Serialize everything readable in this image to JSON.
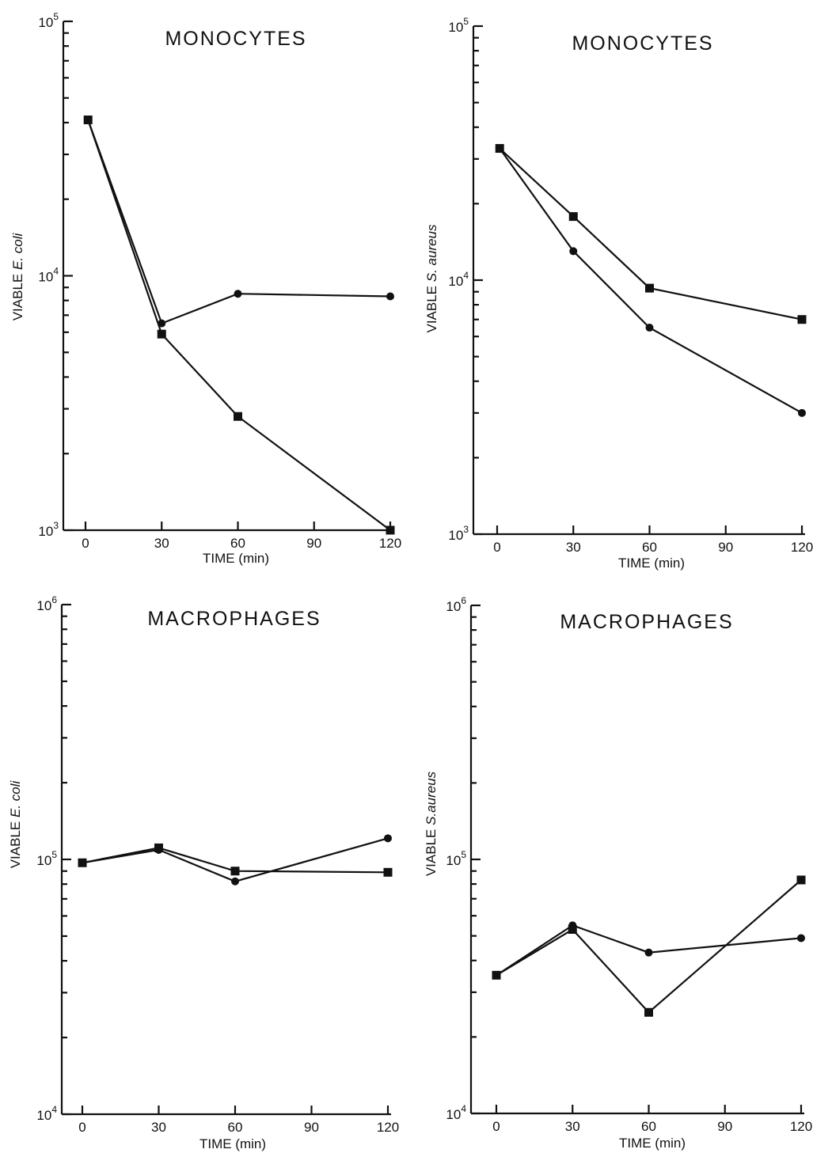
{
  "chart_data": [
    {
      "type": "line",
      "title": "MONOCYTES",
      "xlabel": "TIME (min)",
      "ylabel_prefix": "VIABLE ",
      "ylabel_organism": "E. coli",
      "x_ticks": [
        0,
        30,
        60,
        90,
        120
      ],
      "ylim": [
        1000,
        100000
      ],
      "y_ticks": [
        {
          "value": 1000,
          "mantissa": "10",
          "exp": "3"
        },
        {
          "value": 10000,
          "mantissa": "10",
          "exp": "4"
        },
        {
          "value": 100000,
          "mantissa": "10",
          "exp": "5"
        }
      ],
      "y_scale": "log",
      "series": [
        {
          "marker": "circle",
          "x": [
            1,
            30,
            60,
            120
          ],
          "y": [
            41000,
            6500,
            8500,
            8300
          ]
        },
        {
          "marker": "square",
          "x": [
            1,
            30,
            60,
            120
          ],
          "y": [
            41000,
            5900,
            2800,
            1000
          ]
        }
      ]
    },
    {
      "type": "line",
      "title": "MONOCYTES",
      "xlabel": "TIME (min)",
      "ylabel_prefix": "VIABLE ",
      "ylabel_organism": "S. aureus",
      "x_ticks": [
        0,
        30,
        60,
        90,
        120
      ],
      "ylim": [
        1000,
        100000
      ],
      "y_ticks": [
        {
          "value": 1000,
          "mantissa": "10",
          "exp": "3"
        },
        {
          "value": 10000,
          "mantissa": "10",
          "exp": "4"
        },
        {
          "value": 100000,
          "mantissa": "10",
          "exp": "5"
        }
      ],
      "y_scale": "log",
      "series": [
        {
          "marker": "circle",
          "x": [
            1,
            30,
            60,
            120
          ],
          "y": [
            33000,
            13000,
            6500,
            3000
          ]
        },
        {
          "marker": "square",
          "x": [
            1,
            30,
            60,
            120
          ],
          "y": [
            33000,
            17800,
            9300,
            7000
          ]
        }
      ]
    },
    {
      "type": "line",
      "title": "MACROPHAGES",
      "xlabel": "TIME (min)",
      "ylabel_prefix": "VIABLE ",
      "ylabel_organism": "E. coli",
      "x_ticks": [
        0,
        30,
        60,
        90,
        120
      ],
      "ylim": [
        10000,
        1000000
      ],
      "y_ticks": [
        {
          "value": 10000,
          "mantissa": "10",
          "exp": "4"
        },
        {
          "value": 100000,
          "mantissa": "10",
          "exp": "5"
        },
        {
          "value": 1000000,
          "mantissa": "10",
          "exp": "6"
        }
      ],
      "y_scale": "log",
      "series": [
        {
          "marker": "circle",
          "x": [
            0,
            30,
            60,
            120
          ],
          "y": [
            97000,
            109000,
            82000,
            121000
          ]
        },
        {
          "marker": "square",
          "x": [
            0,
            30,
            60,
            120
          ],
          "y": [
            97000,
            111000,
            90000,
            89000
          ]
        }
      ]
    },
    {
      "type": "line",
      "title": "MACROPHAGES",
      "xlabel": "TIME (min)",
      "ylabel_prefix": "VIABLE ",
      "ylabel_organism": "S.aureus",
      "x_ticks": [
        0,
        30,
        60,
        90,
        120
      ],
      "ylim": [
        10000,
        1000000
      ],
      "y_ticks": [
        {
          "value": 10000,
          "mantissa": "10",
          "exp": "4"
        },
        {
          "value": 100000,
          "mantissa": "10",
          "exp": "5"
        },
        {
          "value": 1000000,
          "mantissa": "10",
          "exp": "6"
        }
      ],
      "y_scale": "log",
      "series": [
        {
          "marker": "circle",
          "x": [
            0,
            30,
            60,
            120
          ],
          "y": [
            35000,
            55000,
            43000,
            49000
          ]
        },
        {
          "marker": "square",
          "x": [
            0,
            30,
            60,
            120
          ],
          "y": [
            35000,
            53000,
            25000,
            83000
          ]
        }
      ]
    }
  ]
}
